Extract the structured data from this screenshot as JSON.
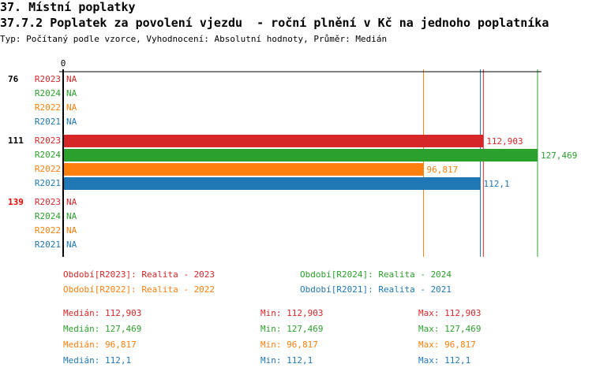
{
  "section_title": "37. Místní poplatky",
  "title": "37.7.2 Poplatek za povolení vjezdu  - roční plnění v Kč na jednoho poplatníka",
  "subtitle": "Typ: Počítaný podle vzorce, Vyhodnocení: Absolutní hodnoty, Průměr: Medián",
  "chart_data": {
    "type": "bar",
    "orientation": "horizontal",
    "grid": false,
    "xlim": [
      0,
      127.469
    ],
    "x_tick_labels": [
      "0"
    ],
    "groups": [
      {
        "label": "76",
        "highlight": false
      },
      {
        "label": "111",
        "highlight": false
      },
      {
        "label": "139",
        "highlight": true
      }
    ],
    "series": [
      {
        "name": "R2023",
        "color": "#d62728",
        "values": [
          null,
          112.903,
          null
        ],
        "labels": [
          "NA",
          "112,903",
          "NA"
        ],
        "legend": "Období[R2023]: Realita - 2023",
        "median": "112,903",
        "min": "112,903",
        "max": "112,903",
        "median_value": 112.903
      },
      {
        "name": "R2024",
        "color": "#2ca02c",
        "values": [
          null,
          127.469,
          null
        ],
        "labels": [
          "NA",
          "127,469",
          "NA"
        ],
        "legend": "Období[R2024]: Realita - 2024",
        "median": "127,469",
        "min": "127,469",
        "max": "127,469",
        "median_value": 127.469
      },
      {
        "name": "R2022",
        "color": "#ff7f0e",
        "values": [
          null,
          96.817,
          null
        ],
        "labels": [
          "NA",
          "96,817",
          "NA"
        ],
        "legend": "Období[R2022]: Realita - 2022",
        "median": "96,817",
        "min": "96,817",
        "max": "96,817",
        "median_value": 96.817
      },
      {
        "name": "R2021",
        "color": "#1f77b4",
        "values": [
          null,
          112.1,
          null
        ],
        "labels": [
          "NA",
          "112,1",
          "NA"
        ],
        "legend": "Období[R2021]: Realita - 2021",
        "median": "112,1",
        "min": "112,1",
        "max": "112,1",
        "median_value": 112.1
      }
    ],
    "stat_labels": {
      "median": "Medián: ",
      "min": "Min: ",
      "max": "Max: "
    }
  }
}
